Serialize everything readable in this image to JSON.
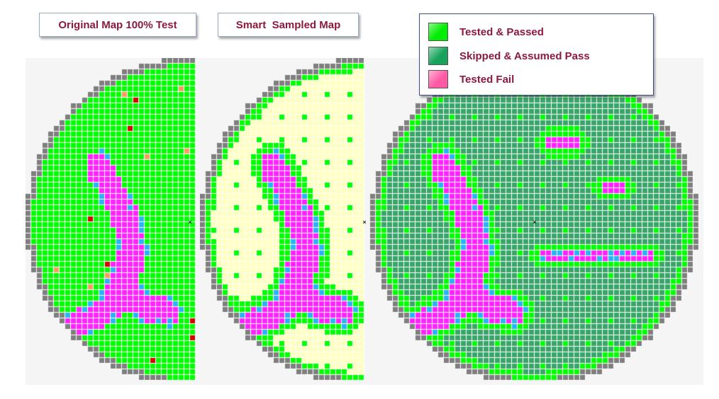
{
  "titles": {
    "original": "Original Map 100% Test",
    "sampled": "Smart  Sampled Map"
  },
  "legend": {
    "items": [
      {
        "label": "Tested & Passed",
        "color": "#00ee00"
      },
      {
        "label": "Skipped & Assumed Pass",
        "color": "#17a35c"
      },
      {
        "label": "Tested Fail",
        "color": "#ff5aa5"
      }
    ]
  },
  "colors": {
    "pass": "#00ff00",
    "skipped": "#3aa56a",
    "sampled_background": "#ffffc0",
    "fail": "#ff22ff",
    "marginal": "#2ab4f5",
    "edge": "#7f7f7f",
    "critical": "#d40000",
    "warning": "#ff9966",
    "grid_line": "#ffffff"
  }
}
